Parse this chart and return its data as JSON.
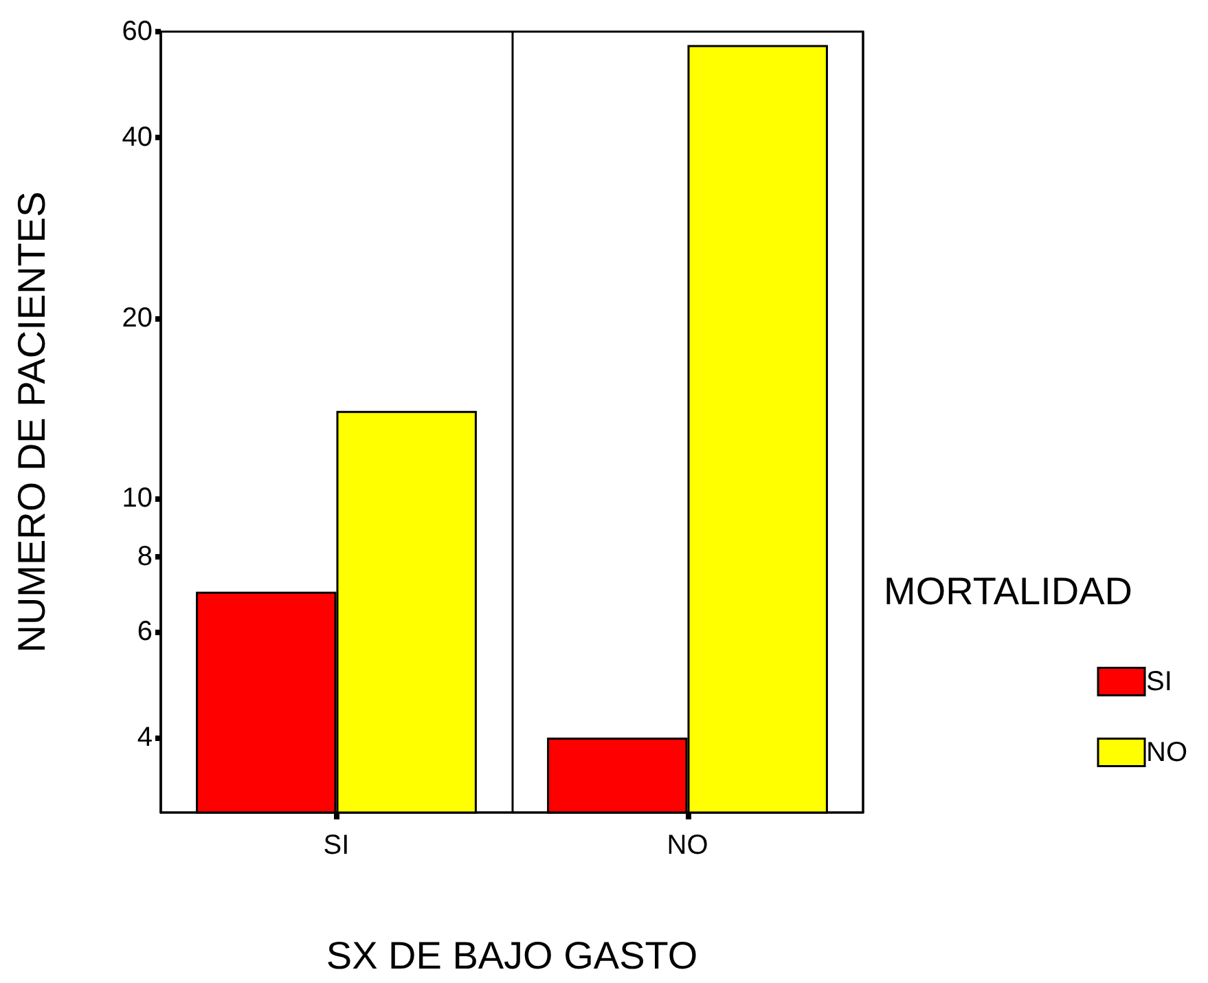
{
  "chart_data": {
    "type": "bar",
    "xlabel": "SX DE BAJO GASTO",
    "ylabel": "NUMERO DE PACIENTES",
    "legend_title": "MORTALIDAD",
    "categories": [
      "SI",
      "NO"
    ],
    "series": [
      {
        "name": "SI",
        "color": "#ff0000",
        "values": [
          7,
          4
        ]
      },
      {
        "name": "NO",
        "color": "#ffff00",
        "values": [
          14,
          57
        ]
      }
    ],
    "log": true,
    "ylim": [
      3,
      60
    ],
    "yticks": [
      4,
      6,
      8,
      10,
      20,
      40,
      60
    ],
    "grid": "x",
    "legend": "right"
  }
}
